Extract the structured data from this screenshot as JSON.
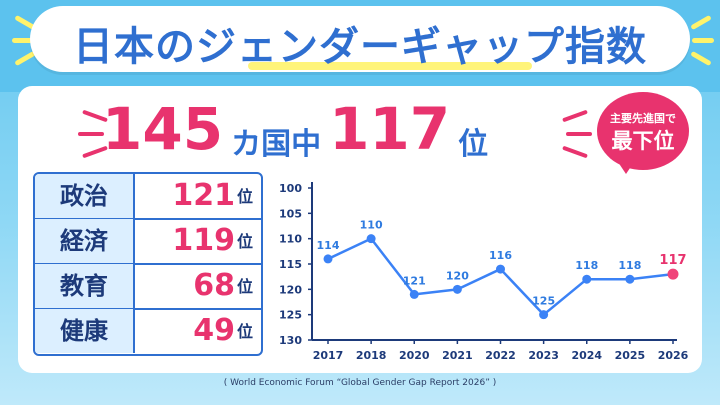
{
  "title": "日本のジェンダーギャップ指数",
  "headline": {
    "rank": "117",
    "total": "145",
    "country_unit": "カ国中",
    "rank_unit": "位"
  },
  "badge": {
    "line1": "主要先進国で",
    "line2": "最下位"
  },
  "rankings": [
    {
      "category": "政治",
      "rank": "121",
      "unit": "位"
    },
    {
      "category": "経済",
      "rank": "119",
      "unit": "位"
    },
    {
      "category": "教育",
      "rank": "68",
      "unit": "位"
    },
    {
      "category": "健康",
      "rank": "49",
      "unit": "位"
    }
  ],
  "chart_data": {
    "type": "line",
    "categories": [
      "2017",
      "2018",
      "2020",
      "2021",
      "2022",
      "2023",
      "2024",
      "2025",
      "2026"
    ],
    "series": [
      {
        "values": [
          114,
          110,
          121,
          120,
          116,
          125,
          118,
          118,
          117
        ]
      }
    ],
    "ylim": [
      100,
      130
    ],
    "yticks": [
      100,
      105,
      110,
      115,
      120,
      125,
      130
    ],
    "y_inverted": true,
    "grid": false,
    "colors": {
      "line": "#3b82f6",
      "point": "#3b82f6",
      "highlight_point": "#f0447a",
      "label": "#2f7be0",
      "highlight_label": "#e8336e"
    }
  },
  "source": "( World Economic Forum “Global Gender Gap Report 2026” )",
  "colors": {
    "brand_blue": "#2f6fd0",
    "accent_pink": "#e8336e",
    "bg_sky": "#63c6ef"
  }
}
